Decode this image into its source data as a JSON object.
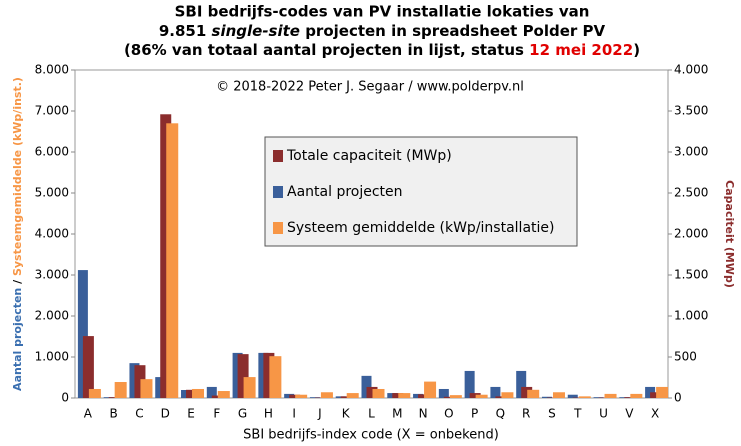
{
  "chart_data": {
    "type": "bar",
    "title_line1": "SBI bedrijfs-codes van PV installatie lokaties van",
    "title_line2_pre": "9.851 ",
    "title_line2_italic": "single-site",
    "title_line2_post": " projecten in spreadsheet Polder PV",
    "title_line3_pre": "(86% van totaal aantal projecten in lijst, status ",
    "title_line3_date": "12 mei 2022",
    "title_line3_post": ")",
    "annotation": "© 2018-2022  Peter J. Segaar / www.polderpv.nl",
    "x_label": "SBI bedrijfs-index code (X = onbekend)",
    "y_label_part1": "Aantal projecten",
    "y_label_sep": " / ",
    "y_label_part2": "Systeemgemiddelde (kWp/inst.)",
    "y2_label": "Capaciteit (MWp)",
    "categories": [
      "A",
      "B",
      "C",
      "D",
      "E",
      "F",
      "G",
      "H",
      "I",
      "J",
      "K",
      "L",
      "M",
      "N",
      "O",
      "P",
      "Q",
      "R",
      "S",
      "T",
      "U",
      "V",
      "X"
    ],
    "series": [
      {
        "name": "Totale capaciteit (MWp)",
        "color": "#8b2d2d",
        "axis": "y2",
        "values": [
          755,
          10,
          400,
          3460,
          100,
          30,
          535,
          550,
          40,
          5,
          20,
          135,
          60,
          45,
          15,
          60,
          20,
          135,
          5,
          5,
          5,
          10,
          70
        ]
      },
      {
        "name": "Aantal projecten",
        "color": "#3a5f9a",
        "values": [
          3120,
          20,
          850,
          510,
          195,
          270,
          1100,
          1100,
          100,
          20,
          40,
          540,
          120,
          100,
          220,
          660,
          270,
          660,
          30,
          80,
          20,
          20,
          270
        ]
      },
      {
        "name": "Systeem gemiddelde (kWp/installatie)",
        "color": "#f79646",
        "values": [
          220,
          390,
          460,
          6700,
          220,
          170,
          510,
          1020,
          80,
          140,
          120,
          220,
          120,
          400,
          70,
          80,
          140,
          200,
          140,
          40,
          100,
          100,
          270
        ]
      }
    ],
    "ylim": [
      0,
      8000
    ],
    "yticks": [
      0,
      {
        "value": 1000,
        "label": "1.000"
      },
      {
        "value": 2000,
        "label": "2.000"
      },
      {
        "value": 3000,
        "label": "3.000"
      },
      {
        "value": 4000,
        "label": "4.000"
      },
      {
        "value": 5000,
        "label": "5.000"
      },
      {
        "value": 6000,
        "label": "6.000"
      },
      {
        "value": 7000,
        "label": "7.000"
      },
      {
        "value": 8000,
        "label": "8.000"
      }
    ],
    "y2lim": [
      0,
      4000
    ],
    "y2ticks": [
      0,
      500,
      {
        "value": 1000,
        "label": "1.000"
      },
      {
        "value": 1500,
        "label": "1.500"
      },
      {
        "value": 2000,
        "label": "2.000"
      },
      {
        "value": 2500,
        "label": "2.500"
      },
      {
        "value": 3000,
        "label": "3.000"
      },
      {
        "value": 3500,
        "label": "3.500"
      },
      {
        "value": 4000,
        "label": "4.000"
      }
    ],
    "grid": false
  }
}
